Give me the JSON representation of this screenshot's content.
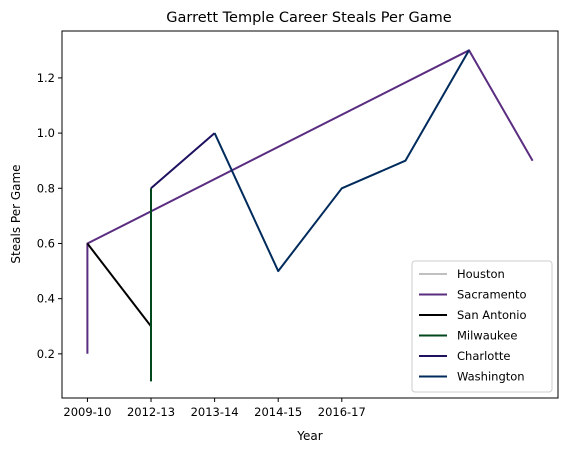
{
  "chart_data": {
    "type": "line",
    "title": "Garrett Temple Career Steals Per Game",
    "xlabel": "Year",
    "ylabel": "Steals Per Game",
    "x_ticks": [
      "2009-10",
      "2012-13",
      "2013-14",
      "2014-15",
      "2016-17"
    ],
    "y_ticks": [
      "0.2",
      "0.4",
      "0.6",
      "0.8",
      "1.0",
      "1.2"
    ],
    "xlim": [
      -0.4,
      7.4
    ],
    "ylim": [
      0.04,
      1.37
    ],
    "grid": false,
    "legend_position": "lower right",
    "series": [
      {
        "name": "Houston",
        "color": "#c0c0c0",
        "points": [
          [
            0,
            0.6
          ],
          [
            0,
            0.6
          ]
        ]
      },
      {
        "name": "Sacramento",
        "color": "#5a2d81",
        "points": [
          [
            0,
            0.2
          ],
          [
            0,
            0.6
          ],
          [
            6,
            1.3
          ],
          [
            7,
            0.9
          ]
        ]
      },
      {
        "name": "San Antonio",
        "color": "#000000",
        "points": [
          [
            0,
            0.6
          ],
          [
            1,
            0.3
          ]
        ]
      },
      {
        "name": "Milwaukee",
        "color": "#00471b",
        "points": [
          [
            1,
            0.1
          ],
          [
            1,
            0.8
          ]
        ]
      },
      {
        "name": "Charlotte",
        "color": "#1d1160",
        "points": [
          [
            1,
            0.8
          ],
          [
            2,
            1.0
          ]
        ]
      },
      {
        "name": "Washington",
        "color": "#002b5c",
        "points": [
          [
            2,
            1.0
          ],
          [
            3,
            0.5
          ],
          [
            4,
            0.8
          ],
          [
            5,
            0.9
          ],
          [
            6,
            1.3
          ]
        ]
      }
    ]
  }
}
